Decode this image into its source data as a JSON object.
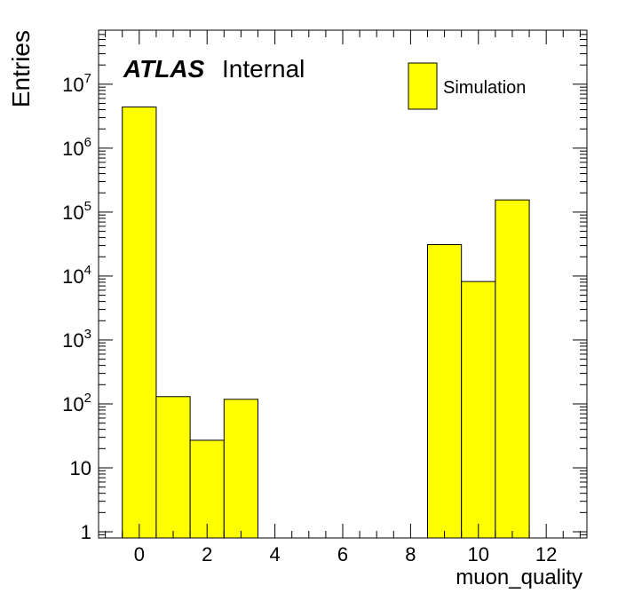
{
  "chart_data": {
    "type": "bar",
    "histogram": true,
    "y_scale": "log",
    "xlabel": "muon_quality",
    "ylabel": "Entries",
    "xlim": [
      -1.2,
      13.2
    ],
    "ylim": [
      0.8,
      70000000
    ],
    "x_ticks": [
      {
        "value": 0,
        "label": "0"
      },
      {
        "value": 2,
        "label": "2"
      },
      {
        "value": 4,
        "label": "4"
      },
      {
        "value": 6,
        "label": "6"
      },
      {
        "value": 8,
        "label": "8"
      },
      {
        "value": 10,
        "label": "10"
      },
      {
        "value": 12,
        "label": "12"
      }
    ],
    "y_ticks": [
      {
        "value": 1,
        "base": "1",
        "exp": ""
      },
      {
        "value": 10,
        "base": "10",
        "exp": ""
      },
      {
        "value": 100,
        "base": "10",
        "exp": "2"
      },
      {
        "value": 1000,
        "base": "10",
        "exp": "3"
      },
      {
        "value": 10000,
        "base": "10",
        "exp": "4"
      },
      {
        "value": 100000,
        "base": "10",
        "exp": "5"
      },
      {
        "value": 1000000,
        "base": "10",
        "exp": "6"
      },
      {
        "value": 10000000,
        "base": "10",
        "exp": "7"
      }
    ],
    "bins": [
      {
        "low": -0.5,
        "high": 0.5,
        "value": 4400000
      },
      {
        "low": 0.5,
        "high": 1.5,
        "value": 130
      },
      {
        "low": 1.5,
        "high": 2.5,
        "value": 27
      },
      {
        "low": 2.5,
        "high": 3.5,
        "value": 118
      },
      {
        "low": 8.5,
        "high": 9.5,
        "value": 31000
      },
      {
        "low": 9.5,
        "high": 10.5,
        "value": 8200
      },
      {
        "low": 10.5,
        "high": 11.5,
        "value": 155000
      }
    ],
    "fill_color": "#ffff00",
    "line_color": "#000000",
    "legend": {
      "entries": [
        "Simulation"
      ],
      "position": "top-right"
    },
    "annotation": {
      "bold_italic": "ATLAS",
      "normal": "Internal",
      "position": "top-left"
    }
  }
}
